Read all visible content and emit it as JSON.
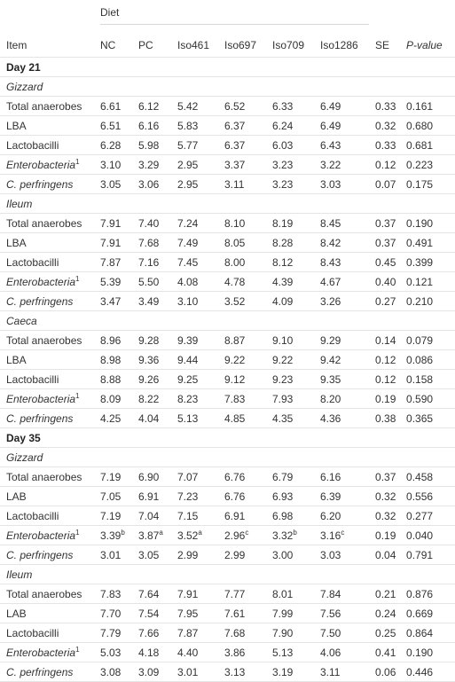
{
  "header": {
    "diet_label": "Diet",
    "columns": [
      "Item",
      "NC",
      "PC",
      "Iso461",
      "Iso697",
      "Iso709",
      "Iso1286",
      "SE",
      "P-value"
    ]
  },
  "rows": [
    {
      "kind": "day",
      "label": "Day 21"
    },
    {
      "kind": "section",
      "label": "Gizzard"
    },
    {
      "kind": "data",
      "label": "Total anaerobes",
      "italic": false,
      "sup": "",
      "values": [
        "6.61",
        "6.12",
        "5.42",
        "6.52",
        "6.33",
        "6.49",
        "0.33",
        "0.161"
      ],
      "value_sups": [
        "",
        "",
        "",
        "",
        "",
        ""
      ]
    },
    {
      "kind": "data",
      "label": "LBA",
      "italic": false,
      "sup": "",
      "values": [
        "6.51",
        "6.16",
        "5.83",
        "6.37",
        "6.24",
        "6.49",
        "0.32",
        "0.680"
      ],
      "value_sups": [
        "",
        "",
        "",
        "",
        "",
        ""
      ]
    },
    {
      "kind": "data",
      "label": "Lactobacilli",
      "italic": false,
      "sup": "",
      "values": [
        "6.28",
        "5.98",
        "5.77",
        "6.37",
        "6.03",
        "6.43",
        "0.33",
        "0.681"
      ],
      "value_sups": [
        "",
        "",
        "",
        "",
        "",
        ""
      ]
    },
    {
      "kind": "data",
      "label": "Enterobacteria",
      "italic": true,
      "sup": "1",
      "values": [
        "3.10",
        "3.29",
        "2.95",
        "3.37",
        "3.23",
        "3.22",
        "0.12",
        "0.223"
      ],
      "value_sups": [
        "",
        "",
        "",
        "",
        "",
        ""
      ]
    },
    {
      "kind": "data",
      "label": "C. perfringens",
      "italic": true,
      "sup": "",
      "values": [
        "3.05",
        "3.06",
        "2.95",
        "3.11",
        "3.23",
        "3.03",
        "0.07",
        "0.175"
      ],
      "value_sups": [
        "",
        "",
        "",
        "",
        "",
        ""
      ]
    },
    {
      "kind": "section",
      "label": "Ileum"
    },
    {
      "kind": "data",
      "label": "Total anaerobes",
      "italic": false,
      "sup": "",
      "values": [
        "7.91",
        "7.40",
        "7.24",
        "8.10",
        "8.19",
        "8.45",
        "0.37",
        "0.190"
      ],
      "value_sups": [
        "",
        "",
        "",
        "",
        "",
        ""
      ]
    },
    {
      "kind": "data",
      "label": "LBA",
      "italic": false,
      "sup": "",
      "values": [
        "7.91",
        "7.68",
        "7.49",
        "8.05",
        "8.28",
        "8.42",
        "0.37",
        "0.491"
      ],
      "value_sups": [
        "",
        "",
        "",
        "",
        "",
        ""
      ]
    },
    {
      "kind": "data",
      "label": "Lactobacilli",
      "italic": false,
      "sup": "",
      "values": [
        "7.87",
        "7.16",
        "7.45",
        "8.00",
        "8.12",
        "8.43",
        "0.45",
        "0.399"
      ],
      "value_sups": [
        "",
        "",
        "",
        "",
        "",
        ""
      ]
    },
    {
      "kind": "data",
      "label": "Enterobacteria",
      "italic": true,
      "sup": "1",
      "values": [
        "5.39",
        "5.50",
        "4.08",
        "4.78",
        "4.39",
        "4.67",
        "0.40",
        "0.121"
      ],
      "value_sups": [
        "",
        "",
        "",
        "",
        "",
        ""
      ]
    },
    {
      "kind": "data",
      "label": "C. perfringens",
      "italic": true,
      "sup": "",
      "values": [
        "3.47",
        "3.49",
        "3.10",
        "3.52",
        "4.09",
        "3.26",
        "0.27",
        "0.210"
      ],
      "value_sups": [
        "",
        "",
        "",
        "",
        "",
        ""
      ]
    },
    {
      "kind": "section",
      "label": "Caeca"
    },
    {
      "kind": "data",
      "label": "Total anaerobes",
      "italic": false,
      "sup": "",
      "values": [
        "8.96",
        "9.28",
        "9.39",
        "8.87",
        "9.10",
        "9.29",
        "0.14",
        "0.079"
      ],
      "value_sups": [
        "",
        "",
        "",
        "",
        "",
        ""
      ]
    },
    {
      "kind": "data",
      "label": "LBA",
      "italic": false,
      "sup": "",
      "values": [
        "8.98",
        "9.36",
        "9.44",
        "9.22",
        "9.22",
        "9.42",
        "0.12",
        "0.086"
      ],
      "value_sups": [
        "",
        "",
        "",
        "",
        "",
        ""
      ]
    },
    {
      "kind": "data",
      "label": "Lactobacilli",
      "italic": false,
      "sup": "",
      "values": [
        "8.88",
        "9.26",
        "9.25",
        "9.12",
        "9.23",
        "9.35",
        "0.12",
        "0.158"
      ],
      "value_sups": [
        "",
        "",
        "",
        "",
        "",
        ""
      ]
    },
    {
      "kind": "data",
      "label": "Enterobacteria",
      "italic": true,
      "sup": "1",
      "values": [
        "8.09",
        "8.22",
        "8.23",
        "7.83",
        "7.93",
        "8.20",
        "0.19",
        "0.590"
      ],
      "value_sups": [
        "",
        "",
        "",
        "",
        "",
        ""
      ]
    },
    {
      "kind": "data",
      "label": "C. perfringens",
      "italic": true,
      "sup": "",
      "values": [
        "4.25",
        "4.04",
        "5.13",
        "4.85",
        "4.35",
        "4.36",
        "0.38",
        "0.365"
      ],
      "value_sups": [
        "",
        "",
        "",
        "",
        "",
        ""
      ]
    },
    {
      "kind": "day",
      "label": "Day 35"
    },
    {
      "kind": "section",
      "label": "Gizzard"
    },
    {
      "kind": "data",
      "label": "Total anaerobes",
      "italic": false,
      "sup": "",
      "values": [
        "7.19",
        "6.90",
        "7.07",
        "6.76",
        "6.79",
        "6.16",
        "0.37",
        "0.458"
      ],
      "value_sups": [
        "",
        "",
        "",
        "",
        "",
        ""
      ]
    },
    {
      "kind": "data",
      "label": "LAB",
      "italic": false,
      "sup": "",
      "values": [
        "7.05",
        "6.91",
        "7.23",
        "6.76",
        "6.93",
        "6.39",
        "0.32",
        "0.556"
      ],
      "value_sups": [
        "",
        "",
        "",
        "",
        "",
        ""
      ]
    },
    {
      "kind": "data",
      "label": "Lactobacilli",
      "italic": false,
      "sup": "",
      "values": [
        "7.19",
        "7.04",
        "7.15",
        "6.91",
        "6.98",
        "6.20",
        "0.32",
        "0.277"
      ],
      "value_sups": [
        "",
        "",
        "",
        "",
        "",
        ""
      ]
    },
    {
      "kind": "data",
      "label": "Enterobacteria",
      "italic": true,
      "sup": "1",
      "values": [
        "3.39",
        "3.87",
        "3.52",
        "2.96",
        "3.32",
        "3.16",
        "0.19",
        "0.040"
      ],
      "value_sups": [
        "b",
        "a",
        "a",
        "c",
        "b",
        "c"
      ]
    },
    {
      "kind": "data",
      "label": "C. perfringens",
      "italic": true,
      "sup": "",
      "values": [
        "3.01",
        "3.05",
        "2.99",
        "2.99",
        "3.00",
        "3.03",
        "0.04",
        "0.791"
      ],
      "value_sups": [
        "",
        "",
        "",
        "",
        "",
        ""
      ]
    },
    {
      "kind": "section",
      "label": "Ileum"
    },
    {
      "kind": "data",
      "label": "Total anaerobes",
      "italic": false,
      "sup": "",
      "values": [
        "7.83",
        "7.64",
        "7.91",
        "7.77",
        "8.01",
        "7.84",
        "0.21",
        "0.876"
      ],
      "value_sups": [
        "",
        "",
        "",
        "",
        "",
        ""
      ]
    },
    {
      "kind": "data",
      "label": "LAB",
      "italic": false,
      "sup": "",
      "values": [
        "7.70",
        "7.54",
        "7.95",
        "7.61",
        "7.99",
        "7.56",
        "0.24",
        "0.669"
      ],
      "value_sups": [
        "",
        "",
        "",
        "",
        "",
        ""
      ]
    },
    {
      "kind": "data",
      "label": "Lactobacilli",
      "italic": false,
      "sup": "",
      "values": [
        "7.79",
        "7.66",
        "7.87",
        "7.68",
        "7.90",
        "7.50",
        "0.25",
        "0.864"
      ],
      "value_sups": [
        "",
        "",
        "",
        "",
        "",
        ""
      ]
    },
    {
      "kind": "data",
      "label": "Enterobacteria",
      "italic": true,
      "sup": "1",
      "values": [
        "5.03",
        "4.18",
        "4.40",
        "3.86",
        "5.13",
        "4.06",
        "0.41",
        "0.190"
      ],
      "value_sups": [
        "",
        "",
        "",
        "",
        "",
        ""
      ]
    },
    {
      "kind": "data",
      "label": "C. perfringens",
      "italic": true,
      "sup": "",
      "values": [
        "3.08",
        "3.09",
        "3.01",
        "3.13",
        "3.19",
        "3.11",
        "0.06",
        "0.446"
      ],
      "value_sups": [
        "",
        "",
        "",
        "",
        "",
        ""
      ]
    }
  ]
}
